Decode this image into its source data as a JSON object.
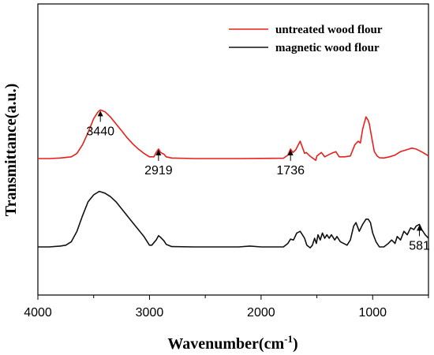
{
  "chart_data": {
    "type": "line",
    "xlabel": "Wavenumber(cm",
    "xlabel_sup": "-1",
    "xlabel_close": ")",
    "ylabel": "Transmittance(a.u.)",
    "xlim": [
      4000,
      500
    ],
    "x_reversed": true,
    "x_ticks": [
      4000,
      3000,
      2000,
      1000
    ],
    "y_ticks_labels": false,
    "grid": false,
    "legend_position": "top-right",
    "series": [
      {
        "name": "untreated wood flour",
        "color": "#e8201c",
        "points": [
          [
            4000,
            100
          ],
          [
            3900,
            100
          ],
          [
            3800,
            99.7
          ],
          [
            3700,
            99
          ],
          [
            3650,
            97
          ],
          [
            3600,
            92
          ],
          [
            3550,
            85
          ],
          [
            3500,
            77
          ],
          [
            3460,
            73
          ],
          [
            3440,
            72
          ],
          [
            3400,
            73
          ],
          [
            3350,
            76
          ],
          [
            3300,
            80
          ],
          [
            3250,
            84
          ],
          [
            3200,
            88
          ],
          [
            3150,
            91.5
          ],
          [
            3100,
            94.5
          ],
          [
            3050,
            97
          ],
          [
            3000,
            99
          ],
          [
            2960,
            99
          ],
          [
            2940,
            96.5
          ],
          [
            2919,
            94.5
          ],
          [
            2900,
            96.5
          ],
          [
            2870,
            97.5
          ],
          [
            2850,
            99
          ],
          [
            2800,
            99.7
          ],
          [
            2600,
            100
          ],
          [
            2400,
            100
          ],
          [
            2200,
            100
          ],
          [
            2000,
            99.9
          ],
          [
            1800,
            99.8
          ],
          [
            1760,
            98
          ],
          [
            1736,
            94.5
          ],
          [
            1715,
            96.5
          ],
          [
            1690,
            95
          ],
          [
            1650,
            90
          ],
          [
            1630,
            93.5
          ],
          [
            1610,
            97
          ],
          [
            1595,
            96.5
          ],
          [
            1560,
            98.7
          ],
          [
            1510,
            101
          ],
          [
            1500,
            98.5
          ],
          [
            1480,
            97.5
          ],
          [
            1460,
            96.5
          ],
          [
            1430,
            99
          ],
          [
            1400,
            98
          ],
          [
            1370,
            97
          ],
          [
            1330,
            96
          ],
          [
            1300,
            99
          ],
          [
            1250,
            99
          ],
          [
            1200,
            98.5
          ],
          [
            1160,
            92
          ],
          [
            1130,
            90
          ],
          [
            1110,
            91
          ],
          [
            1090,
            83
          ],
          [
            1060,
            76
          ],
          [
            1040,
            78
          ],
          [
            1030,
            80
          ],
          [
            1000,
            91
          ],
          [
            985,
            96
          ],
          [
            960,
            98.5
          ],
          [
            940,
            99.5
          ],
          [
            900,
            99.7
          ],
          [
            850,
            99
          ],
          [
            800,
            98
          ],
          [
            750,
            96
          ],
          [
            700,
            95
          ],
          [
            650,
            94
          ],
          [
            610,
            94.5
          ],
          [
            580,
            95.5
          ],
          [
            550,
            96.5
          ],
          [
            500,
            98.5
          ]
        ]
      },
      {
        "name": "magnetic wood flour",
        "color": "#111111",
        "points": [
          [
            4000,
            100
          ],
          [
            3900,
            100
          ],
          [
            3800,
            99.5
          ],
          [
            3750,
            99
          ],
          [
            3700,
            97
          ],
          [
            3650,
            91
          ],
          [
            3600,
            82
          ],
          [
            3550,
            74
          ],
          [
            3500,
            70
          ],
          [
            3450,
            68
          ],
          [
            3400,
            69
          ],
          [
            3350,
            71
          ],
          [
            3300,
            74
          ],
          [
            3250,
            78
          ],
          [
            3200,
            82
          ],
          [
            3150,
            86
          ],
          [
            3100,
            90
          ],
          [
            3050,
            94
          ],
          [
            3000,
            99
          ],
          [
            2980,
            99
          ],
          [
            2940,
            96
          ],
          [
            2919,
            93.5
          ],
          [
            2900,
            94.5
          ],
          [
            2870,
            96.5
          ],
          [
            2850,
            98.5
          ],
          [
            2800,
            99.8
          ],
          [
            2600,
            100
          ],
          [
            2400,
            100
          ],
          [
            2200,
            100
          ],
          [
            2100,
            99.5
          ],
          [
            2000,
            100
          ],
          [
            1800,
            100
          ],
          [
            1760,
            98
          ],
          [
            1736,
            95.5
          ],
          [
            1710,
            96
          ],
          [
            1680,
            92
          ],
          [
            1650,
            91
          ],
          [
            1630,
            93
          ],
          [
            1610,
            95
          ],
          [
            1590,
            99
          ],
          [
            1560,
            100.5
          ],
          [
            1540,
            99
          ],
          [
            1520,
            95
          ],
          [
            1505,
            98
          ],
          [
            1490,
            93
          ],
          [
            1470,
            96
          ],
          [
            1450,
            92
          ],
          [
            1430,
            95
          ],
          [
            1410,
            93
          ],
          [
            1390,
            95
          ],
          [
            1370,
            93
          ],
          [
            1340,
            96
          ],
          [
            1320,
            94
          ],
          [
            1290,
            97
          ],
          [
            1260,
            98
          ],
          [
            1230,
            99
          ],
          [
            1200,
            96
          ],
          [
            1170,
            88
          ],
          [
            1150,
            86
          ],
          [
            1120,
            91
          ],
          [
            1090,
            87
          ],
          [
            1060,
            84
          ],
          [
            1040,
            84
          ],
          [
            1020,
            86
          ],
          [
            1000,
            92
          ],
          [
            970,
            97
          ],
          [
            940,
            100
          ],
          [
            900,
            100
          ],
          [
            860,
            98
          ],
          [
            830,
            96
          ],
          [
            800,
            98
          ],
          [
            780,
            94
          ],
          [
            750,
            96
          ],
          [
            720,
            91
          ],
          [
            690,
            93
          ],
          [
            660,
            89
          ],
          [
            630,
            90
          ],
          [
            610,
            88
          ],
          [
            581,
            87
          ],
          [
            560,
            90
          ],
          [
            530,
            93
          ],
          [
            500,
            95
          ]
        ]
      }
    ],
    "annotations": [
      {
        "label": "3440",
        "x": 3440,
        "series": 0
      },
      {
        "label": "2919",
        "x": 2919,
        "series": 0
      },
      {
        "label": "1736",
        "x": 1736,
        "series": 0
      },
      {
        "label": "581",
        "x": 581,
        "series": 1
      }
    ]
  }
}
